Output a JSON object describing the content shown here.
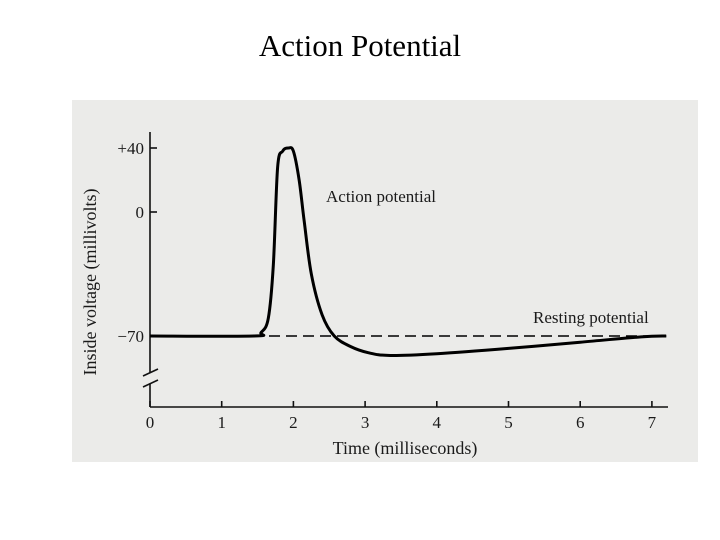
{
  "slide_title": "Action Potential",
  "chart_data": {
    "type": "line",
    "title": "Action Potential",
    "xlabel": "Time (milliseconds)",
    "ylabel": "Inside voltage (millivolts)",
    "xlim": [
      0,
      7.2
    ],
    "x_ticks": [
      0,
      1,
      2,
      3,
      4,
      5,
      6,
      7
    ],
    "x_tick_labels": [
      "0",
      "1",
      "2",
      "3",
      "4",
      "5",
      "6",
      "7"
    ],
    "y_ticks": [
      40,
      0,
      -70
    ],
    "y_tick_labels": [
      "+40",
      "0",
      "−70"
    ],
    "y_axis_break": true,
    "series": [
      {
        "name": "Action potential",
        "style": "solid",
        "x": [
          0,
          1.45,
          1.55,
          1.65,
          1.72,
          1.78,
          1.85,
          1.93,
          2.0,
          2.08,
          2.15,
          2.25,
          2.4,
          2.57,
          2.8,
          3.05,
          3.35,
          4.0,
          5.0,
          6.0,
          6.85,
          7.2
        ],
        "y": [
          -70,
          -70,
          -68,
          -60,
          -30,
          28,
          38,
          40,
          38,
          20,
          -5,
          -35,
          -58,
          -70,
          -76,
          -79.5,
          -81,
          -80,
          -77,
          -73.5,
          -70.5,
          -70
        ]
      },
      {
        "name": "Resting potential",
        "style": "dashed",
        "x": [
          0,
          7.2
        ],
        "y": [
          -70,
          -70
        ]
      }
    ],
    "annotations": [
      "Action potential",
      "Resting potential"
    ]
  }
}
